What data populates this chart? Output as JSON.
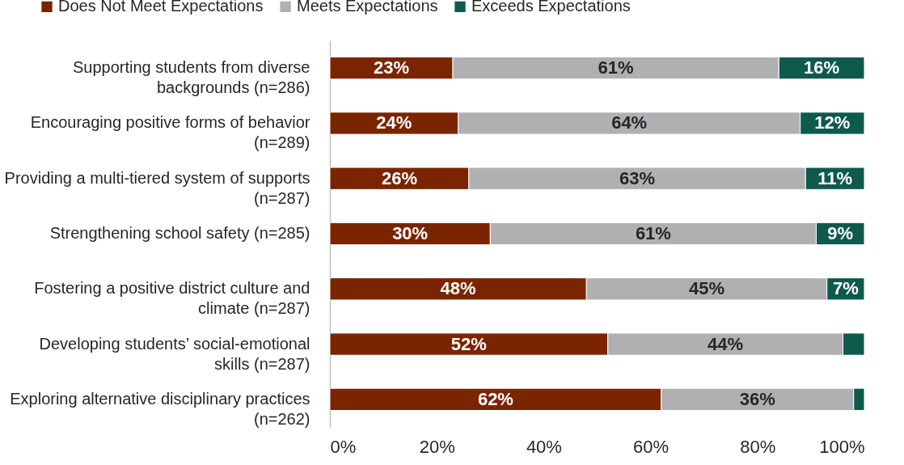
{
  "chart_data": {
    "type": "bar",
    "orientation": "horizontal",
    "stacked": true,
    "legend": "top",
    "grid": false,
    "categories": [
      "Supporting students from diverse backgrounds (n=286)",
      "Encouraging positive forms of behavior (n=289)",
      "Providing a multi-tiered system of supports (n=287)",
      "Strengthening school safety (n=285)",
      "Fostering a positive district culture and climate (n=287)",
      "Developing students’ social-emotional skills (n=287)",
      "Exploring alternative disciplinary practices (n=262)"
    ],
    "xlim": [
      0,
      100
    ],
    "xticks": [
      {
        "value": 0,
        "label": "0%"
      },
      {
        "value": 20,
        "label": "20%"
      },
      {
        "value": 40,
        "label": "40%"
      },
      {
        "value": 60,
        "label": "60%"
      },
      {
        "value": 80,
        "label": "80%"
      },
      {
        "value": 100,
        "label": "100%"
      }
    ],
    "series": [
      {
        "name": "Does Not Meet Expectations",
        "color": "#7b2400",
        "values": [
          23,
          24,
          26,
          30,
          48,
          52,
          62
        ],
        "value_labels": [
          "23%",
          "24%",
          "26%",
          "30%",
          "48%",
          "52%",
          "62%"
        ]
      },
      {
        "name": "Meets Expectations",
        "color": "#b0b0b2",
        "values": [
          61,
          64,
          63,
          61,
          45,
          44,
          36
        ],
        "value_labels": [
          "61%",
          "64%",
          "63%",
          "61%",
          "45%",
          "44%",
          "36%"
        ]
      },
      {
        "name": "Exceeds Expectations",
        "color": "#0e5a4c",
        "values": [
          16,
          12,
          11,
          9,
          7,
          4,
          2
        ],
        "value_labels": [
          "16%",
          "12%",
          "11%",
          "9%",
          "7%",
          null,
          null
        ]
      }
    ]
  }
}
